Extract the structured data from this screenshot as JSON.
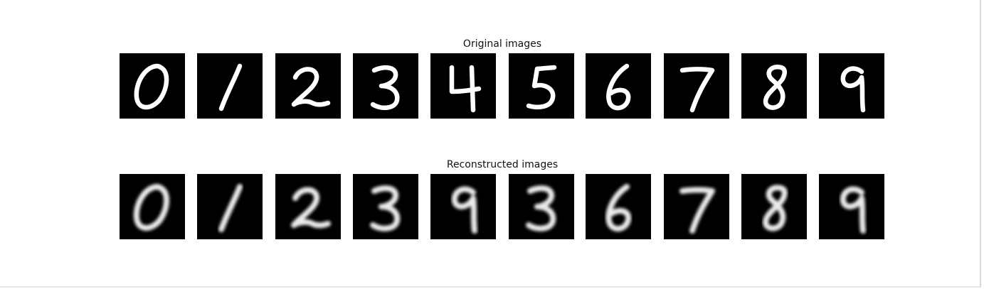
{
  "figure": {
    "top_title": "Original images",
    "bottom_title": "Reconstructed images"
  },
  "original_digits": [
    "0",
    "1",
    "2",
    "3",
    "4",
    "5",
    "6",
    "7",
    "8",
    "9"
  ],
  "reconstructed_digits": [
    "0",
    "1",
    "2",
    "3",
    "9",
    "3",
    "6",
    "7",
    "8",
    "9"
  ],
  "colors": {
    "background": "#ffffff",
    "tile_background": "#000000",
    "stroke": "#ffffff"
  }
}
